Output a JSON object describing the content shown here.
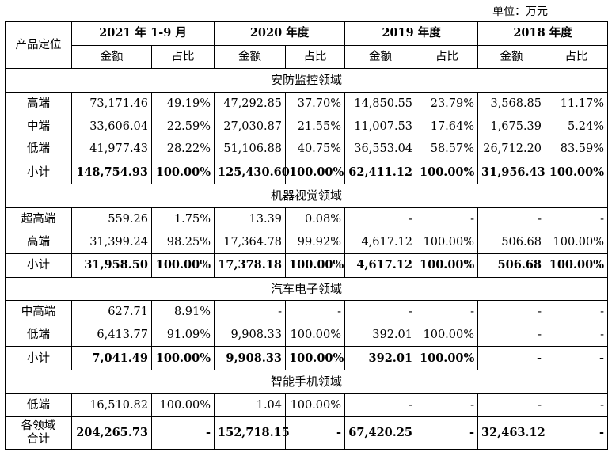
{
  "unit_label": "单位：万元",
  "header": {
    "product_position": "产品定位",
    "periods": [
      "2021 年 1-9 月",
      "2020 年度",
      "2019 年度",
      "2018 年度"
    ],
    "amount": "金额",
    "ratio": "占比"
  },
  "sections": [
    {
      "title": "安防监控领域",
      "rows": [
        {
          "label": "高端",
          "cells": [
            "73,171.46",
            "49.19%",
            "47,292.85",
            "37.70%",
            "14,850.55",
            "23.79%",
            "3,568.85",
            "11.17%"
          ]
        },
        {
          "label": "中端",
          "cells": [
            "33,606.04",
            "22.59%",
            "27,030.87",
            "21.55%",
            "11,007.53",
            "17.64%",
            "1,675.39",
            "5.24%"
          ]
        },
        {
          "label": "低端",
          "cells": [
            "41,977.43",
            "28.22%",
            "51,106.88",
            "40.75%",
            "36,553.04",
            "58.57%",
            "26,712.20",
            "83.59%"
          ]
        },
        {
          "label": "小计",
          "subtotal": true,
          "cells": [
            "148,754.93",
            "100.00%",
            "125,430.60",
            "100.00%",
            "62,411.12",
            "100.00%",
            "31,956.43",
            "100.00%"
          ]
        }
      ]
    },
    {
      "title": "机器视觉领域",
      "rows": [
        {
          "label": "超高端",
          "cells": [
            "559.26",
            "1.75%",
            "13.39",
            "0.08%",
            "-",
            "-",
            "-",
            "-"
          ]
        },
        {
          "label": "高端",
          "cells": [
            "31,399.24",
            "98.25%",
            "17,364.78",
            "99.92%",
            "4,617.12",
            "100.00%",
            "506.68",
            "100.00%"
          ]
        },
        {
          "label": "小计",
          "subtotal": true,
          "cells": [
            "31,958.50",
            "100.00%",
            "17,378.18",
            "100.00%",
            "4,617.12",
            "100.00%",
            "506.68",
            "100.00%"
          ]
        }
      ]
    },
    {
      "title": "汽车电子领域",
      "rows": [
        {
          "label": "中高端",
          "cells": [
            "627.71",
            "8.91%",
            "-",
            "-",
            "-",
            "-",
            "-",
            "-"
          ]
        },
        {
          "label": "低端",
          "cells": [
            "6,413.77",
            "91.09%",
            "9,908.33",
            "100.00%",
            "392.01",
            "100.00%",
            "-",
            "-"
          ]
        },
        {
          "label": "小计",
          "subtotal": true,
          "cells": [
            "7,041.49",
            "100.00%",
            "9,908.33",
            "100.00%",
            "392.01",
            "100.00%",
            "-",
            "-"
          ]
        }
      ]
    },
    {
      "title": "智能手机领域",
      "rows": [
        {
          "label": "低端",
          "cells": [
            "16,510.82",
            "100.00%",
            "1.04",
            "100.00%",
            "-",
            "-",
            "-",
            "-"
          ]
        }
      ]
    }
  ],
  "total": {
    "label_line1": "各领域",
    "label_line2": "合计",
    "cells": [
      "204,265.73",
      "-",
      "152,718.15",
      "-",
      "67,420.25",
      "-",
      "32,463.12",
      "-"
    ]
  }
}
